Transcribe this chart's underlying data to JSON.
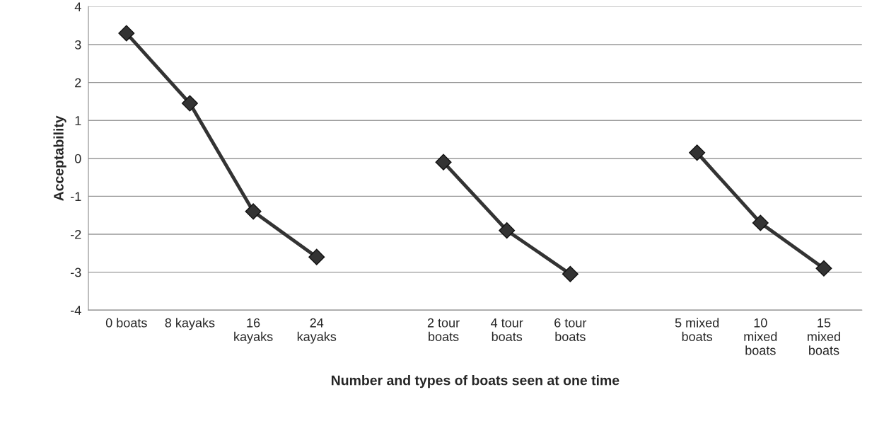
{
  "chart_data": {
    "type": "line",
    "xlabel": "Number and types of boats seen at one time",
    "ylabel": "Acceptability",
    "categories": [
      "0 boats",
      "8 kayaks",
      "16\nkayaks",
      "24\nkayaks",
      null,
      "2 tour\nboats",
      "4 tour\nboats",
      "6 tour\nboats",
      null,
      "5 mixed\nboats",
      "10\nmixed\nboats",
      "15\nmixed\nboats"
    ],
    "series": [
      {
        "color": "#333333",
        "values": [
          3.3,
          1.45,
          -1.4,
          -2.6,
          null,
          -0.1,
          -1.9,
          -3.05,
          null,
          0.15,
          -1.7,
          -2.9
        ]
      }
    ],
    "ylim": [
      -4,
      4
    ],
    "yticks": [
      -4,
      -3,
      -2,
      -1,
      0,
      1,
      2,
      3,
      4
    ],
    "grid": "y",
    "marker": "diamond",
    "line_style": "solid"
  }
}
